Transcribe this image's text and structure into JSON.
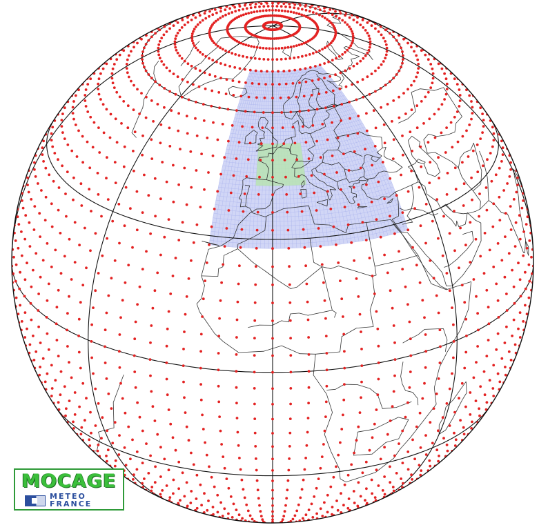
{
  "map": {
    "projection": "orthographic (satellite view)",
    "view_center": {
      "lon": 0,
      "lat": 25
    },
    "colors": {
      "background": "#ffffff",
      "globe_outline": "#111111",
      "coastlines": "#333333",
      "graticule": "#111111",
      "global_grid_points": "#e32222",
      "europe_domain_fill": "#c9cff4",
      "europe_domain_mesh": "#a9b3ee",
      "france_domain_fill": "#b9e3b3"
    },
    "graticule": {
      "meridians_deg": [
        -90,
        -45,
        0,
        45,
        90,
        135,
        180
      ],
      "parallels_deg": [
        -30,
        0,
        30,
        60
      ]
    },
    "global_grid": {
      "spacing_deg": 4
    },
    "nested_domains": [
      {
        "name": "europe",
        "lon_range": [
          -16,
          36
        ],
        "lat_range": [
          28,
          72
        ]
      },
      {
        "name": "france",
        "lon_range": [
          -5,
          10
        ],
        "lat_range": [
          42,
          52
        ]
      }
    ]
  },
  "logo": {
    "title": "MOCAGE",
    "subtitle_line1": "METEO",
    "subtitle_line2": "FRANCE"
  }
}
